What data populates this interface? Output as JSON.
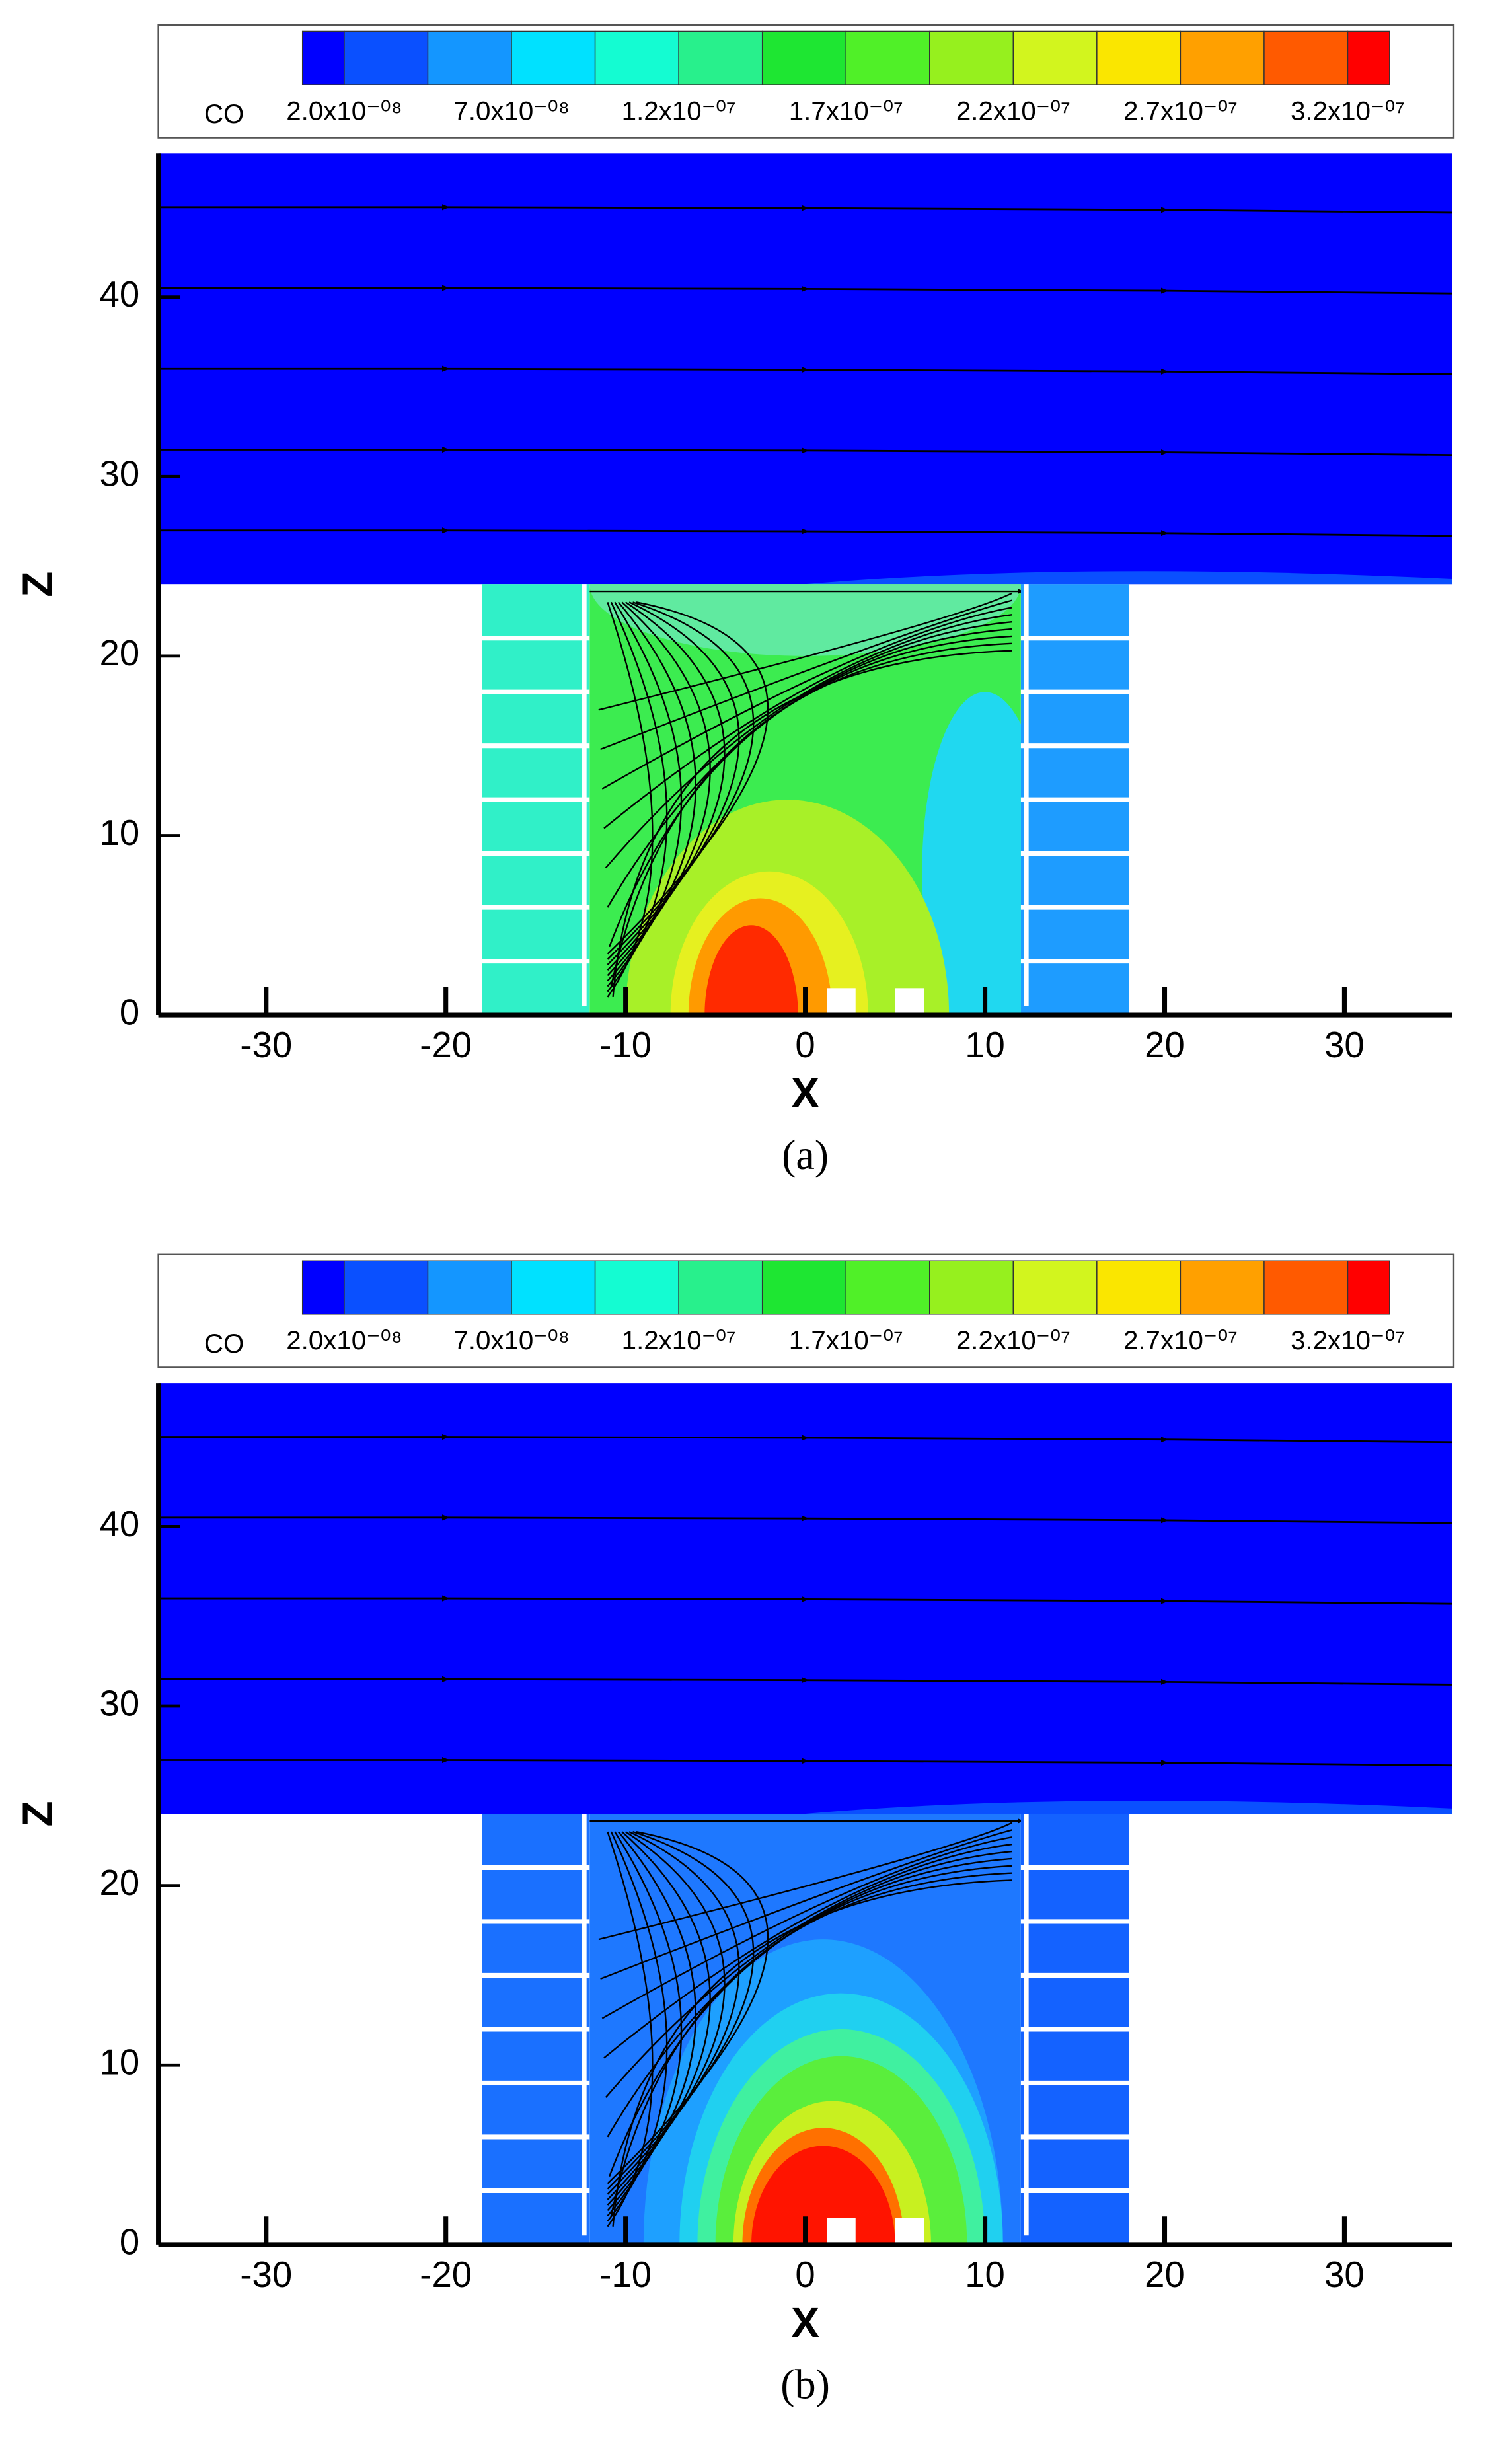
{
  "chart_data": [
    {
      "type": "contour",
      "caption": "(a)",
      "xlabel": "X",
      "ylabel": "Z",
      "xlim": [
        -36,
        36
      ],
      "ylim": [
        0,
        48
      ],
      "xticks": [
        -30,
        -20,
        -10,
        0,
        10,
        20,
        30
      ],
      "yticks": [
        0,
        10,
        20,
        30,
        40
      ],
      "colorbar": {
        "label": "CO",
        "clim": [
          7.5e-09,
          3.325e-07
        ],
        "levels": [
          2e-08,
          4.5e-08,
          7e-08,
          9.5e-08,
          1.2e-07,
          1.45e-07,
          1.7e-07,
          1.95e-07,
          2.2e-07,
          2.45e-07,
          2.7e-07,
          2.95e-07,
          3.2e-07
        ],
        "colors": [
          "#0000ff",
          "#0a50ff",
          "#1496ff",
          "#00e1ff",
          "#14fcd2",
          "#28f08c",
          "#1ee632",
          "#50f028",
          "#96f01e",
          "#d2f51e",
          "#fae600",
          "#ffa000",
          "#ff5a00",
          "#ff0000"
        ],
        "ticks": [
          {
            "value": 2e-08,
            "label": "2.0x10⁻⁰⁸"
          },
          {
            "value": 7e-08,
            "label": "7.0x10⁻⁰⁸"
          },
          {
            "value": 1.2e-07,
            "label": "1.2x10⁻⁰⁷"
          },
          {
            "value": 1.7e-07,
            "label": "1.7x10⁻⁰⁷"
          },
          {
            "value": 2.2e-07,
            "label": "2.2x10⁻⁰⁷"
          },
          {
            "value": 2.7e-07,
            "label": "2.7x10⁻⁰⁷"
          },
          {
            "value": 3.2e-07,
            "label": "3.2x10⁻⁰⁷"
          }
        ]
      }
    },
    {
      "type": "contour",
      "caption": "(b)",
      "xlabel": "X",
      "ylabel": "Z",
      "xlim": [
        -36,
        36
      ],
      "ylim": [
        0,
        48
      ],
      "xticks": [
        -30,
        -20,
        -10,
        0,
        10,
        20,
        30
      ],
      "yticks": [
        0,
        10,
        20,
        30,
        40
      ],
      "colorbar": {
        "label": "CO",
        "clim": [
          7.5e-09,
          3.325e-07
        ],
        "levels": [
          2e-08,
          4.5e-08,
          7e-08,
          9.5e-08,
          1.2e-07,
          1.45e-07,
          1.7e-07,
          1.95e-07,
          2.2e-07,
          2.45e-07,
          2.7e-07,
          2.95e-07,
          3.2e-07
        ],
        "colors": [
          "#0000ff",
          "#0a50ff",
          "#1496ff",
          "#00e1ff",
          "#14fcd2",
          "#28f08c",
          "#1ee632",
          "#50f028",
          "#96f01e",
          "#d2f51e",
          "#fae600",
          "#ffa000",
          "#ff5a00",
          "#ff0000"
        ],
        "ticks": [
          {
            "value": 2e-08,
            "label": "2.0x10⁻⁰⁸"
          },
          {
            "value": 7e-08,
            "label": "7.0x10⁻⁰⁸"
          },
          {
            "value": 1.2e-07,
            "label": "1.2x10⁻⁰⁷"
          },
          {
            "value": 1.7e-07,
            "label": "1.7x10⁻⁰⁷"
          },
          {
            "value": 2.2e-07,
            "label": "2.2x10⁻⁰⁷"
          },
          {
            "value": 2.7e-07,
            "label": "2.7x10⁻⁰⁷"
          },
          {
            "value": 3.2e-07,
            "label": "3.2x10⁻⁰⁷"
          }
        ]
      }
    }
  ]
}
